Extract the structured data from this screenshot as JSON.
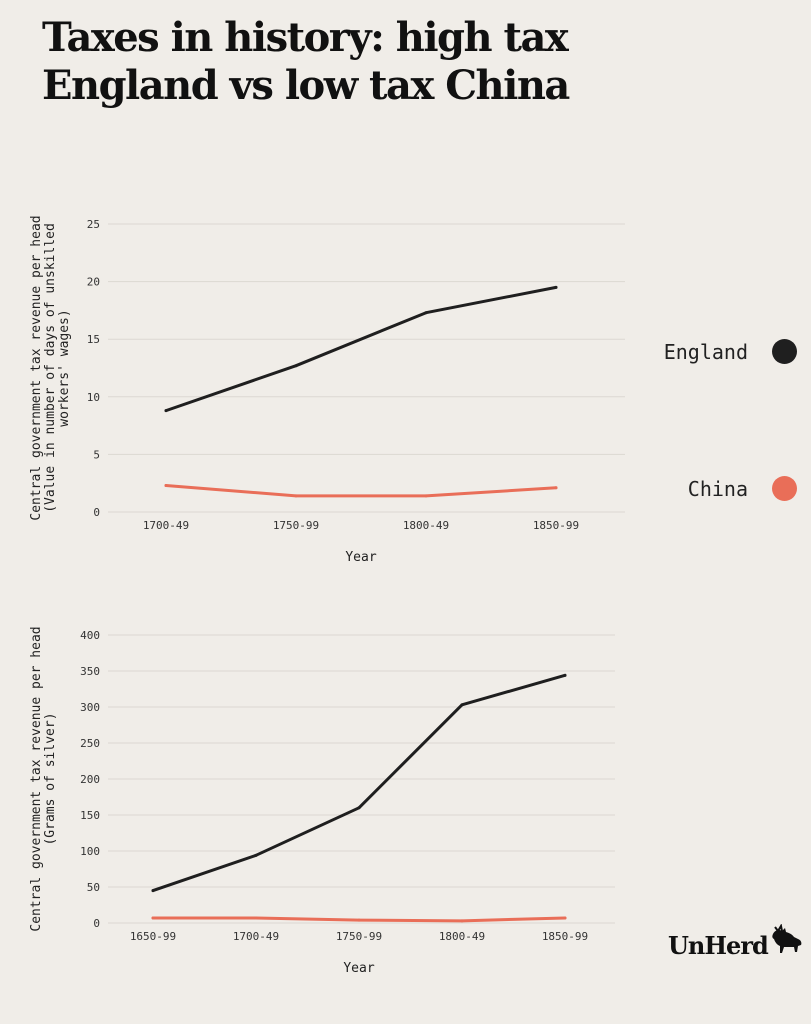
{
  "title": {
    "line1": "Taxes in history: high tax",
    "line2": "England vs low tax China"
  },
  "legend": [
    {
      "name": "England",
      "color": "#1f1f1f"
    },
    {
      "name": "China",
      "color": "#e96e58"
    }
  ],
  "logo": {
    "text": "UnHerd",
    "icon": "moose-icon"
  },
  "chart_data": [
    {
      "type": "line",
      "categories": [
        "1700-49",
        "1750-99",
        "1800-49",
        "1850-99"
      ],
      "series": [
        {
          "name": "England",
          "color": "#1f1f1f",
          "values": [
            8.8,
            12.7,
            17.3,
            19.5
          ]
        },
        {
          "name": "China",
          "color": "#e96e58",
          "values": [
            2.3,
            1.4,
            1.4,
            2.1
          ]
        }
      ],
      "ylabel_lines": [
        "Central government tax revenue per head",
        "(Value in number of days of unskilled",
        "workers' wages)"
      ],
      "xlabel": "Year",
      "ylim": [
        0,
        25
      ],
      "yticks": [
        0,
        5,
        10,
        15,
        20,
        25
      ],
      "grid": true
    },
    {
      "type": "line",
      "categories": [
        "1650-99",
        "1700-49",
        "1750-99",
        "1800-49",
        "1850-99"
      ],
      "series": [
        {
          "name": "England",
          "color": "#1f1f1f",
          "values": [
            45,
            94,
            160,
            303,
            344
          ]
        },
        {
          "name": "China",
          "color": "#e96e58",
          "values": [
            7,
            7,
            4,
            3,
            7
          ]
        }
      ],
      "ylabel_lines": [
        "Central government tax revenue per head",
        "(Grams of silver)"
      ],
      "xlabel": "Year",
      "ylim": [
        0,
        400
      ],
      "yticks": [
        0,
        50,
        100,
        150,
        200,
        250,
        300,
        350,
        400
      ],
      "grid": true
    }
  ]
}
